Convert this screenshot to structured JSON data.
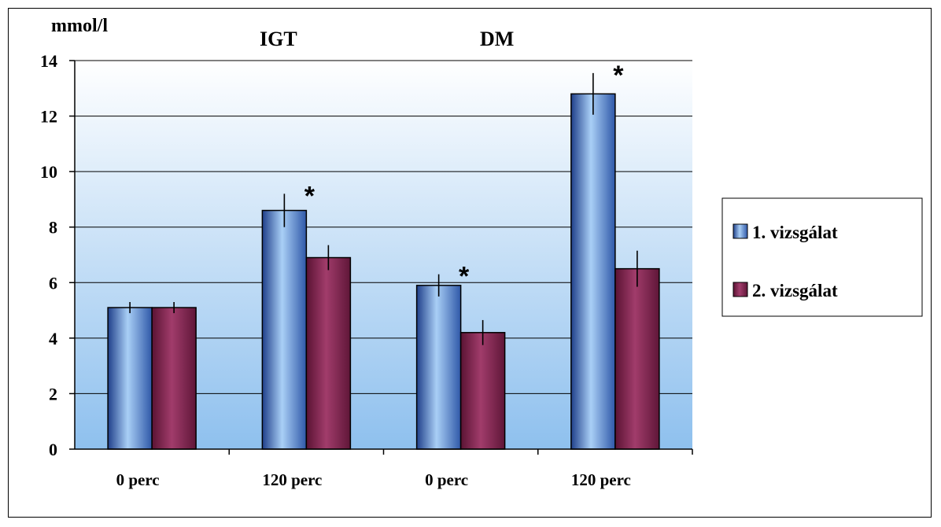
{
  "chart_data": {
    "type": "bar",
    "ylabel": "mmol/l",
    "ylim": [
      0,
      14
    ],
    "yticks": [
      0,
      2,
      4,
      6,
      8,
      10,
      12,
      14
    ],
    "grid": true,
    "legend_position": "right",
    "group_labels": [
      "IGT",
      "DM"
    ],
    "categories": [
      "0 perc",
      "120 perc",
      "0 perc",
      "120 perc"
    ],
    "series": [
      {
        "name": "1. vizsgálat",
        "color": "#6fa8e8",
        "values": [
          5.1,
          8.6,
          5.9,
          12.8
        ],
        "errors": [
          0.2,
          0.6,
          0.4,
          0.75
        ]
      },
      {
        "name": "2. vizsgálat",
        "color": "#8c2f5a",
        "values": [
          5.1,
          6.9,
          4.2,
          6.5
        ],
        "errors": [
          0.2,
          0.45,
          0.45,
          0.65
        ]
      }
    ],
    "annotations": [
      {
        "text": "*",
        "category_index": 1,
        "series_index": 0
      },
      {
        "text": "*",
        "category_index": 2,
        "series_index": 0
      },
      {
        "text": "*",
        "category_index": 3,
        "series_index": 0
      }
    ]
  }
}
